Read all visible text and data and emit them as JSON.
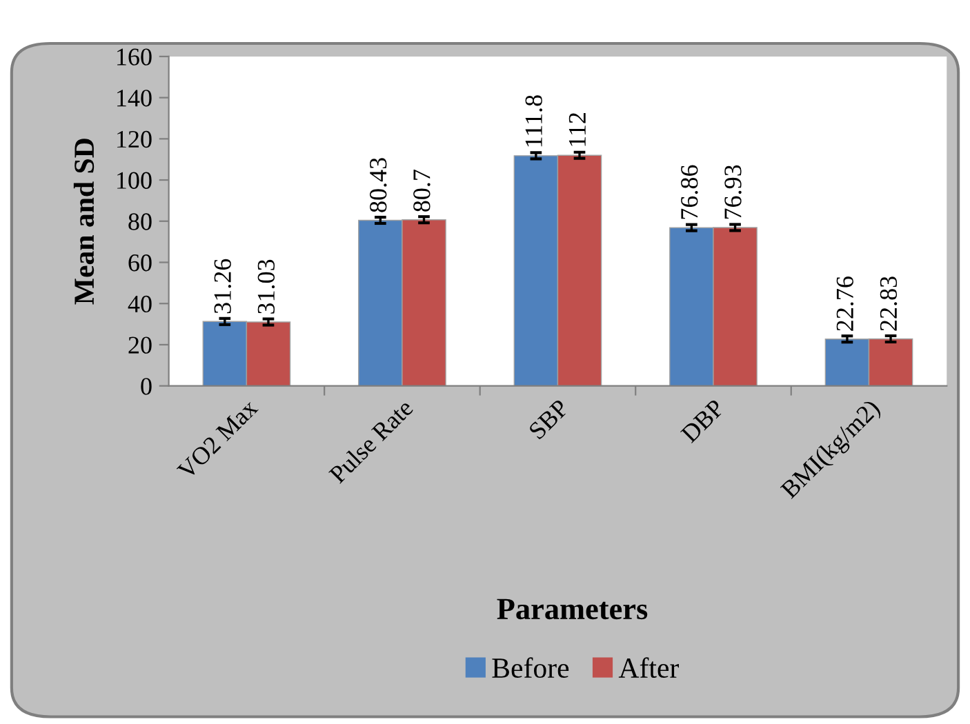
{
  "chart_data": {
    "type": "bar",
    "xlabel": "Parameters",
    "ylabel": "Mean and SD",
    "categories": [
      "VO2 Max",
      "Pulse Rate",
      "SBP",
      "DBP",
      "BMI(kg/m2)"
    ],
    "series": [
      {
        "name": "Before",
        "color": "#4f81bd",
        "values": [
          31.26,
          80.43,
          111.8,
          76.86,
          22.76
        ],
        "errors": [
          1.5,
          1.5,
          1.5,
          1.5,
          1.5
        ]
      },
      {
        "name": "After",
        "color": "#c0504d",
        "values": [
          31.03,
          80.7,
          112,
          76.93,
          22.83
        ],
        "errors": [
          1.5,
          1.5,
          1.5,
          1.5,
          1.5
        ]
      }
    ],
    "ylim": [
      0,
      160
    ],
    "yticks": [
      0,
      20,
      40,
      60,
      80,
      100,
      120,
      140,
      160
    ],
    "data_labels": true,
    "grid": false,
    "legend": "bottom"
  }
}
